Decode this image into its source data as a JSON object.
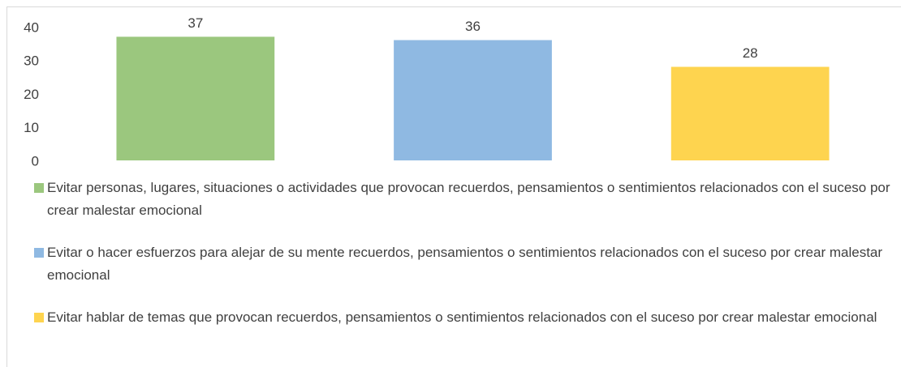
{
  "chart_data": {
    "type": "bar",
    "categories": [
      null
    ],
    "series": [
      {
        "name": "Evitar personas, lugares, situaciones o actividades que provocan recuerdos, pensamientos o sentimientos relacionados con el suceso por crear malestar emocional",
        "color": "#9bc77e",
        "values": [
          37
        ]
      },
      {
        "name": "Evitar o hacer esfuerzos para alejar de su mente recuerdos, pensamientos o sentimientos relacionados con el suceso por crear malestar emocional",
        "color": "#8fb9e2",
        "values": [
          36
        ]
      },
      {
        "name": "Evitar hablar de temas que provocan recuerdos, pensamientos o sentimientos relacionados con el suceso por crear malestar emocional",
        "color": "#fed44f",
        "values": [
          28
        ]
      }
    ],
    "ylim": [
      0,
      40
    ],
    "yticks": [
      0,
      10,
      20,
      30,
      40
    ],
    "grid": false,
    "legend": "bottom"
  }
}
